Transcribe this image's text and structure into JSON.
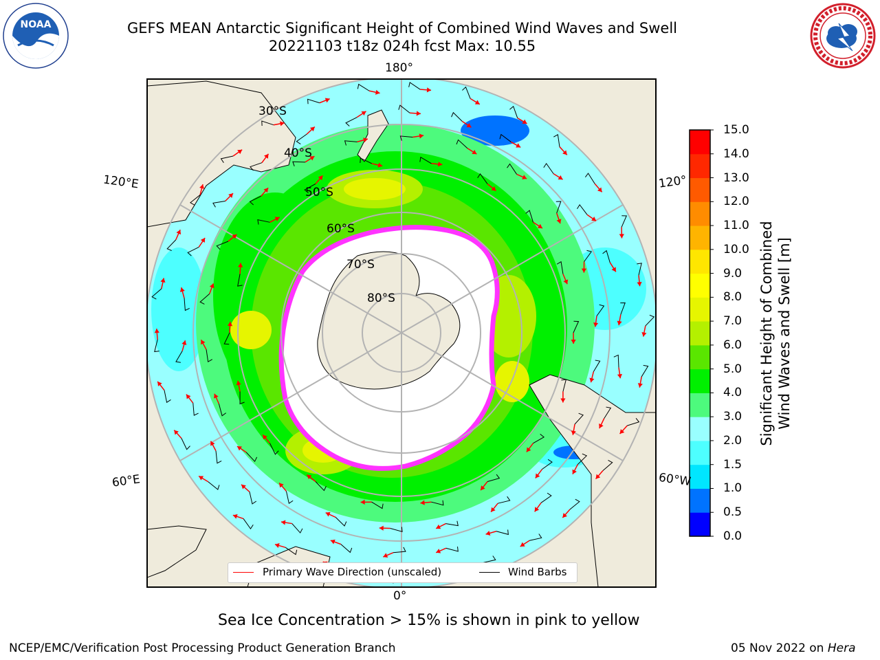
{
  "header": {
    "title_line1": "GEFS MEAN Antarctic Significant Height of Combined Wind Waves and Swell",
    "title_line2": "20221103 t18z 024h fcst   Max: 10.55"
  },
  "logos": {
    "left": {
      "name": "NOAA",
      "text": "NOAA",
      "ring_text": "NATIONAL OCEANIC AND ATMOSPHERIC ADMINISTRATION · U.S. DEPARTMENT OF COMMERCE"
    },
    "right": {
      "name": "National Weather Service",
      "ring_text": "NATIONAL WEATHER SERVICE"
    }
  },
  "map": {
    "projection": "south-polar-stereographic",
    "meridian_labels": {
      "top": "180°",
      "bottom": "0°",
      "upper_left": "120°E",
      "upper_right": "120°",
      "lower_left": "60°E",
      "lower_right": "60°W"
    },
    "latitude_labels": [
      "30°S",
      "40°S",
      "50°S",
      "60°S",
      "70°S",
      "80°S"
    ],
    "colors": {
      "land": "#efebdc",
      "grid": "#b3b3b3",
      "wave_arrow": "#ff0000",
      "wind_barb": "#000000",
      "sea_ice_edge": "#ff33ff"
    }
  },
  "legend": {
    "entries": [
      {
        "label": "Primary Wave Direction (unscaled)",
        "color": "#ff0000"
      },
      {
        "label": "Wind Barbs",
        "color": "#000000"
      }
    ]
  },
  "colorbar": {
    "label_line1": "Significant Height of Combined",
    "label_line2": "Wind Waves and Swell [m]",
    "ticks": [
      "0.0",
      "0.5",
      "1.0",
      "1.5",
      "2.0",
      "3.0",
      "4.0",
      "5.0",
      "6.0",
      "7.0",
      "8.0",
      "9.0",
      "10.0",
      "11.0",
      "12.0",
      "13.0",
      "14.0",
      "15.0"
    ],
    "colors": [
      "#0000ff",
      "#0073ff",
      "#00e6ff",
      "#4dffff",
      "#99ffff",
      "#4dfa7d",
      "#00f000",
      "#5ae600",
      "#b4f000",
      "#e6f500",
      "#ffff00",
      "#ffe600",
      "#ffb400",
      "#ff8c00",
      "#ff5a00",
      "#ff2800",
      "#ff0000"
    ]
  },
  "caption": "Sea Ice Concentration > 15% is shown in pink to yellow",
  "footer": {
    "left": "NCEP/EMC/Verification Post Processing Product Generation Branch",
    "right_date": "05 Nov 2022 on ",
    "right_machine": "Hera"
  }
}
